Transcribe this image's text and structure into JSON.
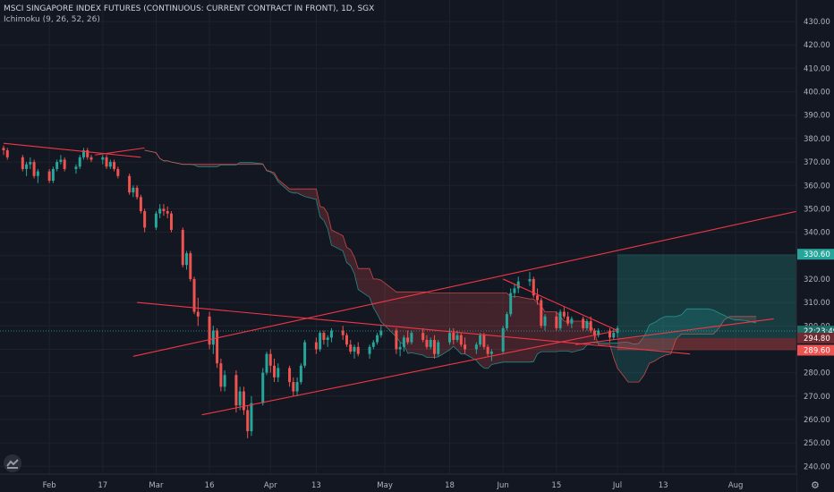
{
  "header": {
    "title": "MSCI SINGAPORE INDEX FUTURES (CONTINUOUS: CURRENT CONTRACT IN FRONT), 1D, SGX",
    "indicator": "Ichimoku (9, 26, 52, 26)"
  },
  "chart_data": {
    "type": "candlestick",
    "ylim": [
      234,
      434
    ],
    "y_ticks": [
      240,
      250,
      260,
      270,
      280,
      290,
      300,
      310,
      320,
      330,
      340,
      350,
      360,
      370,
      380,
      390,
      400,
      410,
      420,
      430
    ],
    "x_ticks": [
      "Feb",
      "17",
      "Mar",
      "16",
      "Apr",
      "13",
      "May",
      "18",
      "Jun",
      "15",
      "Jul",
      "13",
      "Aug"
    ],
    "price_labels": [
      {
        "text": "330.60",
        "value": 330.6,
        "color": "#26a69a"
      },
      {
        "text": "22:23:49",
        "value": 297.8,
        "color": "#1f6b66"
      },
      {
        "text": "294.80",
        "value": 294.8,
        "color": "#6d2b32"
      },
      {
        "text": "289.60",
        "value": 289.6,
        "color": "#ef5350"
      }
    ],
    "series": [
      {
        "name": "Ichimoku (9, 26, 52, 26)",
        "type": "ichimoku"
      }
    ],
    "trendlines": [
      {
        "from": [
          "2020-01-22",
          378
        ],
        "to": [
          "2020-02-27",
          372
        ]
      },
      {
        "from": [
          "2020-02-15",
          373
        ],
        "to": [
          "2020-02-28",
          376
        ]
      },
      {
        "from": [
          "2020-02-26",
          310
        ],
        "to": [
          "2020-07-20",
          288
        ]
      },
      {
        "from": [
          "2020-03-14",
          262
        ],
        "to": [
          "2020-07-01",
          298
        ]
      },
      {
        "from": [
          "2020-02-25",
          287
        ],
        "to": [
          "2020-08-20",
          350
        ]
      },
      {
        "from": [
          "2020-06-01",
          320
        ],
        "to": [
          "2020-07-01",
          298
        ]
      },
      {
        "from": [
          "2020-06-20",
          292
        ],
        "to": [
          "2020-08-11",
          303
        ]
      }
    ],
    "zones": [
      {
        "type": "target",
        "from": "2020-07-01",
        "to": "2020-08-20",
        "low": 294.8,
        "high": 330.6,
        "color": "#26a69a"
      },
      {
        "type": "stop",
        "from": "2020-07-01",
        "to": "2020-08-20",
        "low": 289.6,
        "high": 294.8,
        "color": "#ef5350"
      }
    ],
    "candles": [
      [
        "2020-01-22",
        376,
        377,
        373,
        375
      ],
      [
        "2020-01-23",
        375,
        376,
        371,
        372
      ],
      [
        "2020-01-27",
        372,
        373,
        366,
        367
      ],
      [
        "2020-01-28",
        367,
        370,
        364,
        369
      ],
      [
        "2020-01-29",
        369,
        372,
        367,
        370
      ],
      [
        "2020-01-30",
        370,
        371,
        363,
        364
      ],
      [
        "2020-01-31",
        364,
        367,
        361,
        366
      ],
      [
        "2020-02-03",
        366,
        367,
        361,
        362
      ],
      [
        "2020-02-04",
        362,
        368,
        361,
        367
      ],
      [
        "2020-02-05",
        367,
        371,
        366,
        370
      ],
      [
        "2020-02-06",
        370,
        373,
        369,
        371
      ],
      [
        "2020-02-07",
        371,
        372,
        366,
        367
      ],
      [
        "2020-02-10",
        367,
        369,
        365,
        368
      ],
      [
        "2020-02-11",
        368,
        373,
        367,
        372
      ],
      [
        "2020-02-12",
        372,
        376,
        371,
        375
      ],
      [
        "2020-02-13",
        375,
        376,
        371,
        372
      ],
      [
        "2020-02-14",
        372,
        373,
        370,
        371
      ],
      [
        "2020-02-17",
        371,
        373,
        369,
        372
      ],
      [
        "2020-02-18",
        372,
        373,
        367,
        368
      ],
      [
        "2020-02-19",
        368,
        371,
        367,
        370
      ],
      [
        "2020-02-20",
        370,
        371,
        366,
        367
      ],
      [
        "2020-02-21",
        367,
        368,
        363,
        364
      ],
      [
        "2020-02-24",
        364,
        365,
        356,
        357
      ],
      [
        "2020-02-25",
        357,
        360,
        355,
        359
      ],
      [
        "2020-02-26",
        359,
        360,
        354,
        355
      ],
      [
        "2020-02-27",
        355,
        356,
        348,
        349
      ],
      [
        "2020-02-28",
        349,
        350,
        340,
        342
      ],
      [
        "2020-03-02",
        342,
        349,
        341,
        348
      ],
      [
        "2020-03-03",
        348,
        352,
        346,
        350
      ],
      [
        "2020-03-04",
        350,
        352,
        347,
        349
      ],
      [
        "2020-03-05",
        349,
        351,
        346,
        348
      ],
      [
        "2020-03-06",
        348,
        349,
        340,
        341
      ],
      [
        "2020-03-09",
        341,
        342,
        325,
        326
      ],
      [
        "2020-03-10",
        326,
        332,
        324,
        331
      ],
      [
        "2020-03-11",
        331,
        332,
        319,
        320
      ],
      [
        "2020-03-12",
        320,
        321,
        305,
        306
      ],
      [
        "2020-03-13",
        306,
        312,
        300,
        304
      ],
      [
        "2020-03-16",
        304,
        306,
        290,
        292
      ],
      [
        "2020-03-17",
        292,
        300,
        288,
        298
      ],
      [
        "2020-03-18",
        298,
        299,
        282,
        284
      ],
      [
        "2020-03-19",
        284,
        286,
        272,
        274
      ],
      [
        "2020-03-20",
        274,
        281,
        272,
        279
      ],
      [
        "2020-03-23",
        279,
        281,
        263,
        266
      ],
      [
        "2020-03-24",
        266,
        274,
        264,
        272
      ],
      [
        "2020-03-25",
        272,
        274,
        262,
        264
      ],
      [
        "2020-03-26",
        264,
        266,
        252,
        255
      ],
      [
        "2020-03-27",
        255,
        270,
        253,
        267
      ],
      [
        "2020-03-30",
        267,
        282,
        266,
        280
      ],
      [
        "2020-03-31",
        280,
        289,
        279,
        288
      ],
      [
        "2020-04-01",
        288,
        290,
        280,
        283
      ],
      [
        "2020-04-02",
        283,
        286,
        276,
        278
      ],
      [
        "2020-04-03",
        278,
        284,
        276,
        282
      ],
      [
        "2020-04-06",
        282,
        283,
        274,
        276
      ],
      [
        "2020-04-07",
        276,
        278,
        270,
        272
      ],
      [
        "2020-04-08",
        272,
        278,
        270,
        276
      ],
      [
        "2020-04-09",
        276,
        284,
        275,
        283
      ],
      [
        "2020-04-10",
        283,
        294,
        282,
        293
      ],
      [
        "2020-04-13",
        293,
        295,
        288,
        290
      ],
      [
        "2020-04-14",
        290,
        298,
        289,
        297
      ],
      [
        "2020-04-15",
        297,
        298,
        292,
        294
      ],
      [
        "2020-04-16",
        294,
        296,
        291,
        295
      ],
      [
        "2020-04-17",
        295,
        299,
        293,
        298
      ],
      [
        "2020-04-20",
        298,
        300,
        294,
        296
      ],
      [
        "2020-04-21",
        296,
        297,
        291,
        292
      ],
      [
        "2020-04-22",
        292,
        294,
        288,
        289
      ],
      [
        "2020-04-23",
        289,
        292,
        286,
        291
      ],
      [
        "2020-04-24",
        291,
        293,
        287,
        288
      ],
      [
        "2020-04-27",
        288,
        292,
        286,
        291
      ],
      [
        "2020-04-28",
        291,
        294,
        290,
        293
      ],
      [
        "2020-04-29",
        293,
        297,
        292,
        296
      ],
      [
        "2020-04-30",
        296,
        300,
        295,
        298
      ],
      [
        "2020-05-04",
        298,
        299,
        288,
        290
      ],
      [
        "2020-05-05",
        290,
        293,
        287,
        291
      ],
      [
        "2020-05-06",
        291,
        296,
        289,
        295
      ],
      [
        "2020-05-07",
        295,
        298,
        292,
        293
      ],
      [
        "2020-05-08",
        293,
        298,
        292,
        297
      ],
      [
        "2020-05-11",
        297,
        299,
        293,
        294
      ],
      [
        "2020-05-12",
        294,
        296,
        290,
        291
      ],
      [
        "2020-05-13",
        291,
        295,
        290,
        294
      ],
      [
        "2020-05-14",
        294,
        296,
        286,
        288
      ],
      [
        "2020-05-15",
        288,
        294,
        287,
        293
      ],
      [
        "2020-05-18",
        293,
        299,
        292,
        297
      ],
      [
        "2020-05-19",
        297,
        299,
        292,
        294
      ],
      [
        "2020-05-20",
        294,
        298,
        293,
        296
      ],
      [
        "2020-05-21",
        296,
        297,
        291,
        292
      ],
      [
        "2020-05-22",
        292,
        295,
        288,
        290
      ],
      [
        "2020-05-25",
        290,
        293,
        288,
        292
      ],
      [
        "2020-05-26",
        292,
        297,
        291,
        296
      ],
      [
        "2020-05-27",
        296,
        297,
        290,
        291
      ],
      [
        "2020-05-28",
        291,
        292,
        287,
        288
      ],
      [
        "2020-05-29",
        288,
        290,
        285,
        289
      ],
      [
        "2020-06-01",
        289,
        300,
        288,
        299
      ],
      [
        "2020-06-02",
        299,
        306,
        298,
        305
      ],
      [
        "2020-06-03",
        305,
        316,
        304,
        314
      ],
      [
        "2020-06-04",
        314,
        318,
        312,
        316
      ],
      [
        "2020-06-05",
        316,
        321,
        314,
        319
      ],
      [
        "2020-06-08",
        319,
        323,
        317,
        320
      ],
      [
        "2020-06-09",
        320,
        321,
        312,
        313
      ],
      [
        "2020-06-10",
        313,
        316,
        309,
        311
      ],
      [
        "2020-06-11",
        311,
        312,
        299,
        300
      ],
      [
        "2020-06-12",
        300,
        305,
        298,
        304
      ],
      [
        "2020-06-15",
        304,
        306,
        298,
        299
      ],
      [
        "2020-06-16",
        299,
        307,
        298,
        306
      ],
      [
        "2020-06-17",
        306,
        308,
        303,
        304
      ],
      [
        "2020-06-18",
        304,
        306,
        300,
        301
      ],
      [
        "2020-06-19",
        301,
        304,
        299,
        303
      ],
      [
        "2020-06-22",
        303,
        304,
        298,
        299
      ],
      [
        "2020-06-23",
        299,
        303,
        298,
        302
      ],
      [
        "2020-06-24",
        302,
        304,
        297,
        298
      ],
      [
        "2020-06-25",
        298,
        299,
        294,
        296
      ],
      [
        "2020-06-26",
        296,
        299,
        295,
        298
      ],
      [
        "2020-06-29",
        298,
        299,
        293,
        295
      ],
      [
        "2020-06-30",
        295,
        299,
        294,
        297
      ],
      [
        "2020-07-01",
        297,
        300,
        295,
        299
      ]
    ]
  }
}
